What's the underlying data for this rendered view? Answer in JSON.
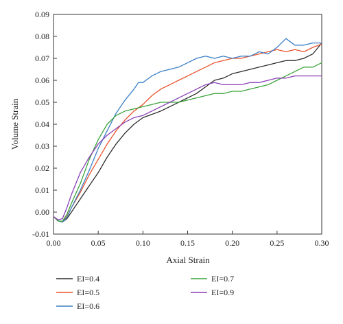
{
  "chart_data": {
    "type": "line",
    "xlabel": "Axial Strain",
    "ylabel": "Volume Strain",
    "xlim": [
      0.0,
      0.3
    ],
    "ylim": [
      -0.01,
      0.09
    ],
    "x_ticks": [
      "0.00",
      "0.05",
      "0.10",
      "0.15",
      "0.20",
      "0.25",
      "0.30"
    ],
    "y_ticks": [
      "-0.01",
      "0.00",
      "0.01",
      "0.02",
      "0.03",
      "0.04",
      "0.05",
      "0.06",
      "0.07",
      "0.08",
      "0.09"
    ],
    "grid": false,
    "legend_position": "bottom",
    "series": [
      {
        "name": "EI=0.4",
        "color": "#2b2b2b",
        "x": [
          0.0,
          0.005,
          0.01,
          0.015,
          0.02,
          0.03,
          0.04,
          0.05,
          0.06,
          0.07,
          0.08,
          0.09,
          0.1,
          0.11,
          0.12,
          0.13,
          0.14,
          0.15,
          0.16,
          0.17,
          0.18,
          0.19,
          0.2,
          0.21,
          0.22,
          0.23,
          0.24,
          0.25,
          0.26,
          0.27,
          0.28,
          0.29,
          0.3
        ],
        "y": [
          -0.002,
          -0.004,
          -0.0045,
          -0.003,
          0.0,
          0.006,
          0.012,
          0.018,
          0.025,
          0.031,
          0.036,
          0.04,
          0.043,
          0.0445,
          0.046,
          0.048,
          0.05,
          0.052,
          0.054,
          0.057,
          0.06,
          0.061,
          0.063,
          0.064,
          0.065,
          0.066,
          0.067,
          0.068,
          0.069,
          0.069,
          0.07,
          0.072,
          0.077
        ]
      },
      {
        "name": "EI=0.5",
        "color": "#e8522a",
        "x": [
          0.0,
          0.005,
          0.01,
          0.015,
          0.02,
          0.03,
          0.04,
          0.05,
          0.06,
          0.07,
          0.08,
          0.09,
          0.1,
          0.11,
          0.12,
          0.13,
          0.14,
          0.15,
          0.16,
          0.17,
          0.18,
          0.19,
          0.2,
          0.21,
          0.22,
          0.23,
          0.24,
          0.25,
          0.26,
          0.27,
          0.28,
          0.29,
          0.3
        ],
        "y": [
          -0.002,
          -0.004,
          -0.0045,
          -0.002,
          0.002,
          0.009,
          0.017,
          0.024,
          0.031,
          0.037,
          0.042,
          0.046,
          0.049,
          0.053,
          0.056,
          0.058,
          0.06,
          0.062,
          0.064,
          0.066,
          0.068,
          0.069,
          0.07,
          0.07,
          0.071,
          0.072,
          0.073,
          0.074,
          0.073,
          0.074,
          0.073,
          0.075,
          0.0765
        ]
      },
      {
        "name": "EI=0.6",
        "color": "#3a7fc4",
        "x": [
          0.0,
          0.005,
          0.01,
          0.015,
          0.02,
          0.03,
          0.04,
          0.05,
          0.06,
          0.07,
          0.08,
          0.09,
          0.095,
          0.1,
          0.11,
          0.12,
          0.13,
          0.14,
          0.15,
          0.16,
          0.17,
          0.18,
          0.19,
          0.2,
          0.21,
          0.22,
          0.23,
          0.24,
          0.25,
          0.26,
          0.27,
          0.28,
          0.29,
          0.3
        ],
        "y": [
          -0.002,
          -0.004,
          -0.0045,
          -0.0025,
          0.002,
          0.01,
          0.019,
          0.029,
          0.037,
          0.045,
          0.051,
          0.056,
          0.059,
          0.059,
          0.062,
          0.064,
          0.065,
          0.066,
          0.068,
          0.07,
          0.071,
          0.07,
          0.071,
          0.07,
          0.071,
          0.071,
          0.073,
          0.072,
          0.075,
          0.079,
          0.076,
          0.076,
          0.077,
          0.077
        ]
      },
      {
        "name": "EI=0.7",
        "color": "#3aa33a",
        "x": [
          0.0,
          0.005,
          0.01,
          0.015,
          0.02,
          0.03,
          0.04,
          0.05,
          0.06,
          0.07,
          0.08,
          0.09,
          0.1,
          0.11,
          0.12,
          0.13,
          0.14,
          0.15,
          0.16,
          0.17,
          0.18,
          0.19,
          0.2,
          0.21,
          0.22,
          0.23,
          0.24,
          0.25,
          0.26,
          0.27,
          0.28,
          0.29,
          0.3
        ],
        "y": [
          -0.002,
          -0.004,
          -0.0042,
          -0.001,
          0.004,
          0.013,
          0.024,
          0.033,
          0.04,
          0.044,
          0.046,
          0.047,
          0.048,
          0.049,
          0.05,
          0.05,
          0.05,
          0.051,
          0.052,
          0.053,
          0.054,
          0.054,
          0.055,
          0.055,
          0.056,
          0.057,
          0.058,
          0.06,
          0.062,
          0.064,
          0.066,
          0.066,
          0.068
        ]
      },
      {
        "name": "EI=0.9",
        "color": "#8a3fb5",
        "x": [
          0.0,
          0.005,
          0.01,
          0.015,
          0.02,
          0.03,
          0.04,
          0.05,
          0.06,
          0.07,
          0.08,
          0.09,
          0.1,
          0.11,
          0.12,
          0.13,
          0.14,
          0.15,
          0.16,
          0.17,
          0.18,
          0.19,
          0.2,
          0.21,
          0.22,
          0.23,
          0.24,
          0.25,
          0.26,
          0.27,
          0.28,
          0.29,
          0.3
        ],
        "y": [
          -0.002,
          -0.0035,
          -0.003,
          0.002,
          0.008,
          0.018,
          0.025,
          0.031,
          0.035,
          0.038,
          0.041,
          0.043,
          0.044,
          0.046,
          0.048,
          0.05,
          0.052,
          0.054,
          0.056,
          0.058,
          0.059,
          0.058,
          0.058,
          0.058,
          0.059,
          0.059,
          0.06,
          0.061,
          0.061,
          0.062,
          0.062,
          0.062,
          0.062
        ]
      }
    ]
  }
}
